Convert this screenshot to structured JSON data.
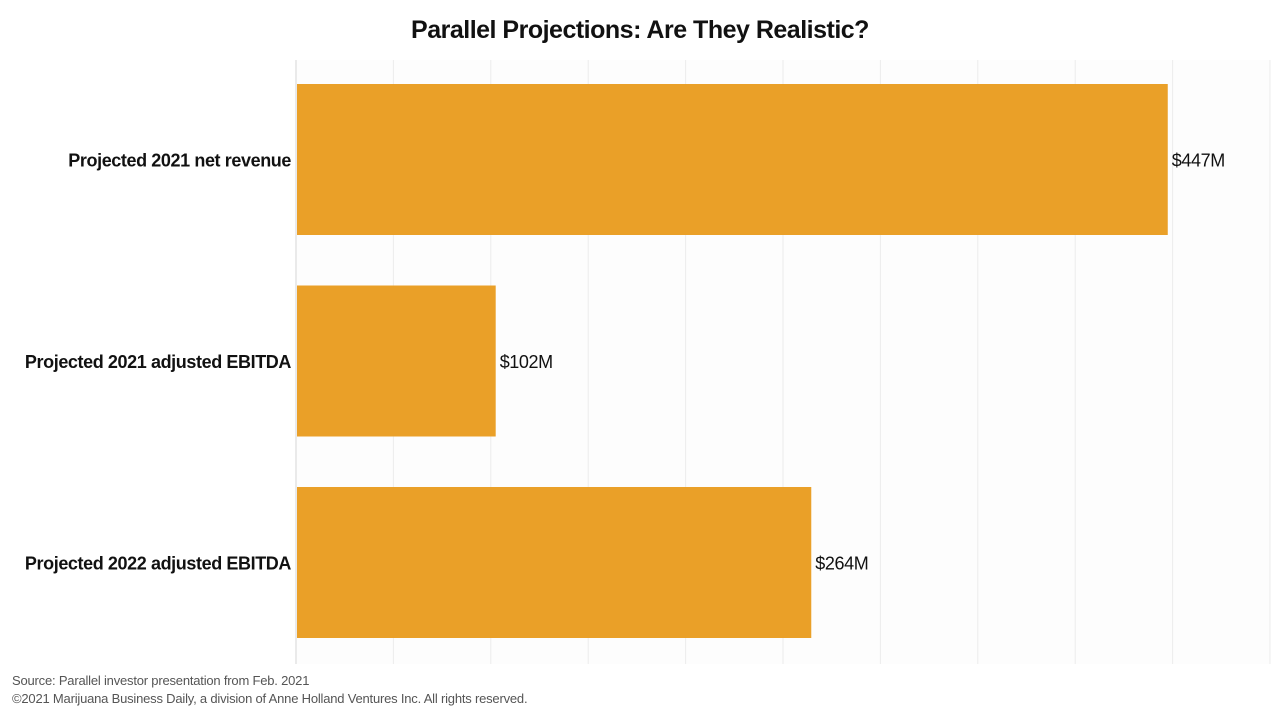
{
  "chart_data": {
    "type": "bar",
    "orientation": "horizontal",
    "title": "Parallel Projections: Are They Realistic?",
    "categories": [
      "Projected 2021 net revenue",
      "Projected 2021 adjusted EBITDA",
      "Projected 2022 adjusted EBITDA"
    ],
    "values": [
      447,
      102,
      264
    ],
    "data_labels": [
      "$447M",
      "$102M",
      "$264M"
    ],
    "unit": "$M",
    "xlim": [
      0,
      500
    ],
    "grid": true,
    "bar_color": "#eaa028",
    "grid_color": "#ececec"
  },
  "footer": {
    "source": "Source: Parallel investor presentation from Feb. 2021",
    "copyright": "©2021 Marijuana Business Daily, a division of Anne Holland Ventures Inc. All rights reserved."
  }
}
